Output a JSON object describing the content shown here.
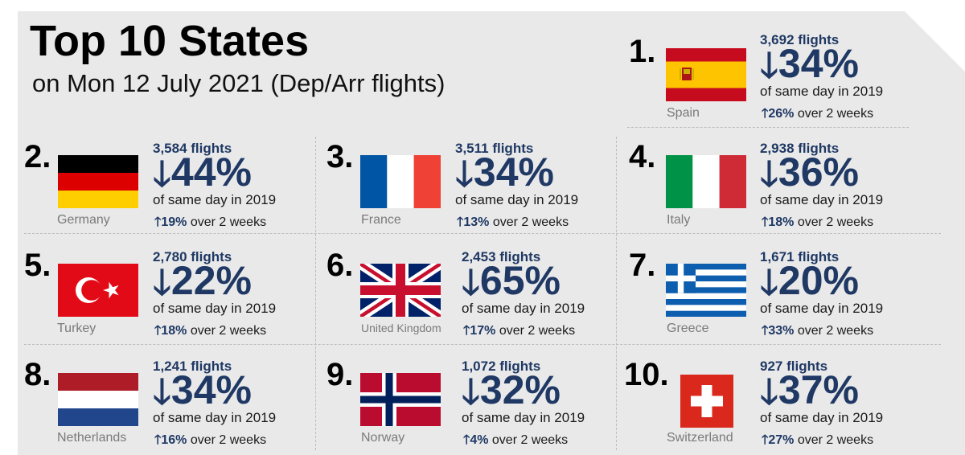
{
  "header": {
    "title": "Top 10 States",
    "subtitle": "on Mon 12 July 2021 (Dep/Arr flights)"
  },
  "labels": {
    "of_same_day": "of same day in 2019",
    "over_two_weeks": "over 2 weeks",
    "down_arrow": "🡓",
    "up_arrow": "🡑"
  },
  "states": [
    {
      "rank": "1.",
      "country": "Spain",
      "flights": "3,692 flights",
      "pct": "34%",
      "change": "26%",
      "flag": "spain-flag"
    },
    {
      "rank": "2.",
      "country": "Germany",
      "flights": "3,584 flights",
      "pct": "44%",
      "change": "19%",
      "flag": "germany-flag"
    },
    {
      "rank": "3.",
      "country": "France",
      "flights": "3,511 flights",
      "pct": "34%",
      "change": "13%",
      "flag": "france-flag"
    },
    {
      "rank": "4.",
      "country": "Italy",
      "flights": "2,938 flights",
      "pct": "36%",
      "change": "18%",
      "flag": "italy-flag"
    },
    {
      "rank": "5.",
      "country": "Turkey",
      "flights": "2,780 flights",
      "pct": "22%",
      "change": "18%",
      "flag": "turkey-flag"
    },
    {
      "rank": "6.",
      "country": "United Kingdom",
      "flights": "2,453 flights",
      "pct": "65%",
      "change": "17%",
      "flag": "united-kingdom-flag"
    },
    {
      "rank": "7.",
      "country": "Greece",
      "flights": "1,671 flights",
      "pct": "20%",
      "change": "33%",
      "flag": "greece-flag"
    },
    {
      "rank": "8.",
      "country": "Netherlands",
      "flights": "1,241 flights",
      "pct": "34%",
      "change": "16%",
      "flag": "netherlands-flag"
    },
    {
      "rank": "9.",
      "country": "Norway",
      "flights": "1,072 flights",
      "pct": "32%",
      "change": "4%",
      "flag": "norway-flag"
    },
    {
      "rank": "10.",
      "country": "Switzerland",
      "flights": "927 flights",
      "pct": "37%",
      "change": "27%",
      "flag": "switzerland-flag"
    }
  ],
  "colors": {
    "panel": "#e9e9e9",
    "accent": "#1f3864",
    "country_label": "#7a7a7a"
  }
}
